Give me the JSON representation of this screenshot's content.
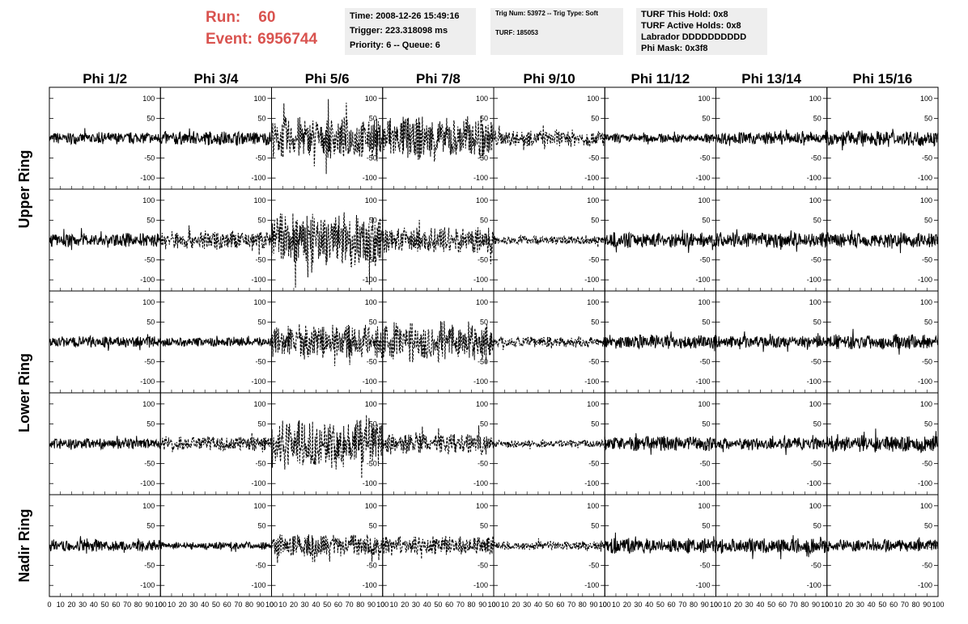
{
  "header": {
    "run_label": "Run:",
    "run_value": "60",
    "event_label": "Event:",
    "event_value": "6956744",
    "info_time": "Time: 2008-12-26 15:49:16",
    "info_trigger": "Trigger: 223.318098 ms",
    "info_priority": "Priority: 6 -- Queue: 6",
    "trig_line": "Trig Num: 53972 -- Trig Type: Soft",
    "turf_line": "TURF: 185053",
    "turf_hold": "TURF This Hold: 0x8",
    "turf_active": "TURF Active Holds: 0x8",
    "labrador": "Labrador DDDDDDDDDD",
    "phi_mask": "Phi Mask: 0x3f8"
  },
  "colors": {
    "header_red": "#d9534f",
    "info_bg": "#eeeeee",
    "trace": "#000000"
  },
  "chart_data": {
    "type": "line",
    "columns": [
      "Phi 1/2",
      "Phi 3/4",
      "Phi 5/6",
      "Phi 7/8",
      "Phi 9/10",
      "Phi 11/12",
      "Phi 13/14",
      "Phi 15/16"
    ],
    "row_groups": [
      {
        "label": "Upper Ring",
        "rows": [
          0,
          1
        ]
      },
      {
        "label": "Lower Ring",
        "rows": [
          2,
          3
        ]
      },
      {
        "label": "Nadir Ring",
        "rows": [
          4
        ]
      }
    ],
    "x_tick_labels": [
      "0",
      "10",
      "20",
      "30",
      "40",
      "50",
      "60",
      "70",
      "80",
      "90",
      "100"
    ],
    "y_tick_labels": [
      "100",
      "50",
      "0",
      "-50",
      "-100"
    ],
    "xlim": [
      0,
      100
    ],
    "ylim": [
      -128,
      128
    ],
    "line_style_note": "dashed traces = amplitude envelope per panel",
    "panels": [
      [
        {
          "amp": 15,
          "dashed": false
        },
        {
          "amp": 18,
          "dashed": false
        },
        {
          "amp": 55,
          "dashed": true
        },
        {
          "amp": 60,
          "dashed": true
        },
        {
          "amp": 22,
          "dashed": true
        },
        {
          "amp": 12,
          "dashed": false
        },
        {
          "amp": 16,
          "dashed": false
        },
        {
          "amp": 20,
          "dashed": false
        }
      ],
      [
        {
          "amp": 18,
          "dashed": false
        },
        {
          "amp": 25,
          "dashed": true
        },
        {
          "amp": 75,
          "dashed": true
        },
        {
          "amp": 35,
          "dashed": true
        },
        {
          "amp": 12,
          "dashed": true
        },
        {
          "amp": 20,
          "dashed": false
        },
        {
          "amp": 20,
          "dashed": false
        },
        {
          "amp": 20,
          "dashed": false
        }
      ],
      [
        {
          "amp": 15,
          "dashed": false
        },
        {
          "amp": 12,
          "dashed": false
        },
        {
          "amp": 45,
          "dashed": true
        },
        {
          "amp": 55,
          "dashed": true
        },
        {
          "amp": 15,
          "dashed": true
        },
        {
          "amp": 18,
          "dashed": false
        },
        {
          "amp": 16,
          "dashed": false
        },
        {
          "amp": 20,
          "dashed": false
        }
      ],
      [
        {
          "amp": 14,
          "dashed": false
        },
        {
          "amp": 20,
          "dashed": true
        },
        {
          "amp": 65,
          "dashed": true
        },
        {
          "amp": 28,
          "dashed": true
        },
        {
          "amp": 10,
          "dashed": true
        },
        {
          "amp": 20,
          "dashed": false
        },
        {
          "amp": 16,
          "dashed": false
        },
        {
          "amp": 22,
          "dashed": false
        }
      ],
      [
        {
          "amp": 16,
          "dashed": false
        },
        {
          "amp": 10,
          "dashed": false
        },
        {
          "amp": 30,
          "dashed": true
        },
        {
          "amp": 25,
          "dashed": true
        },
        {
          "amp": 12,
          "dashed": true
        },
        {
          "amp": 20,
          "dashed": false
        },
        {
          "amp": 20,
          "dashed": false
        },
        {
          "amp": 15,
          "dashed": false
        }
      ]
    ]
  }
}
